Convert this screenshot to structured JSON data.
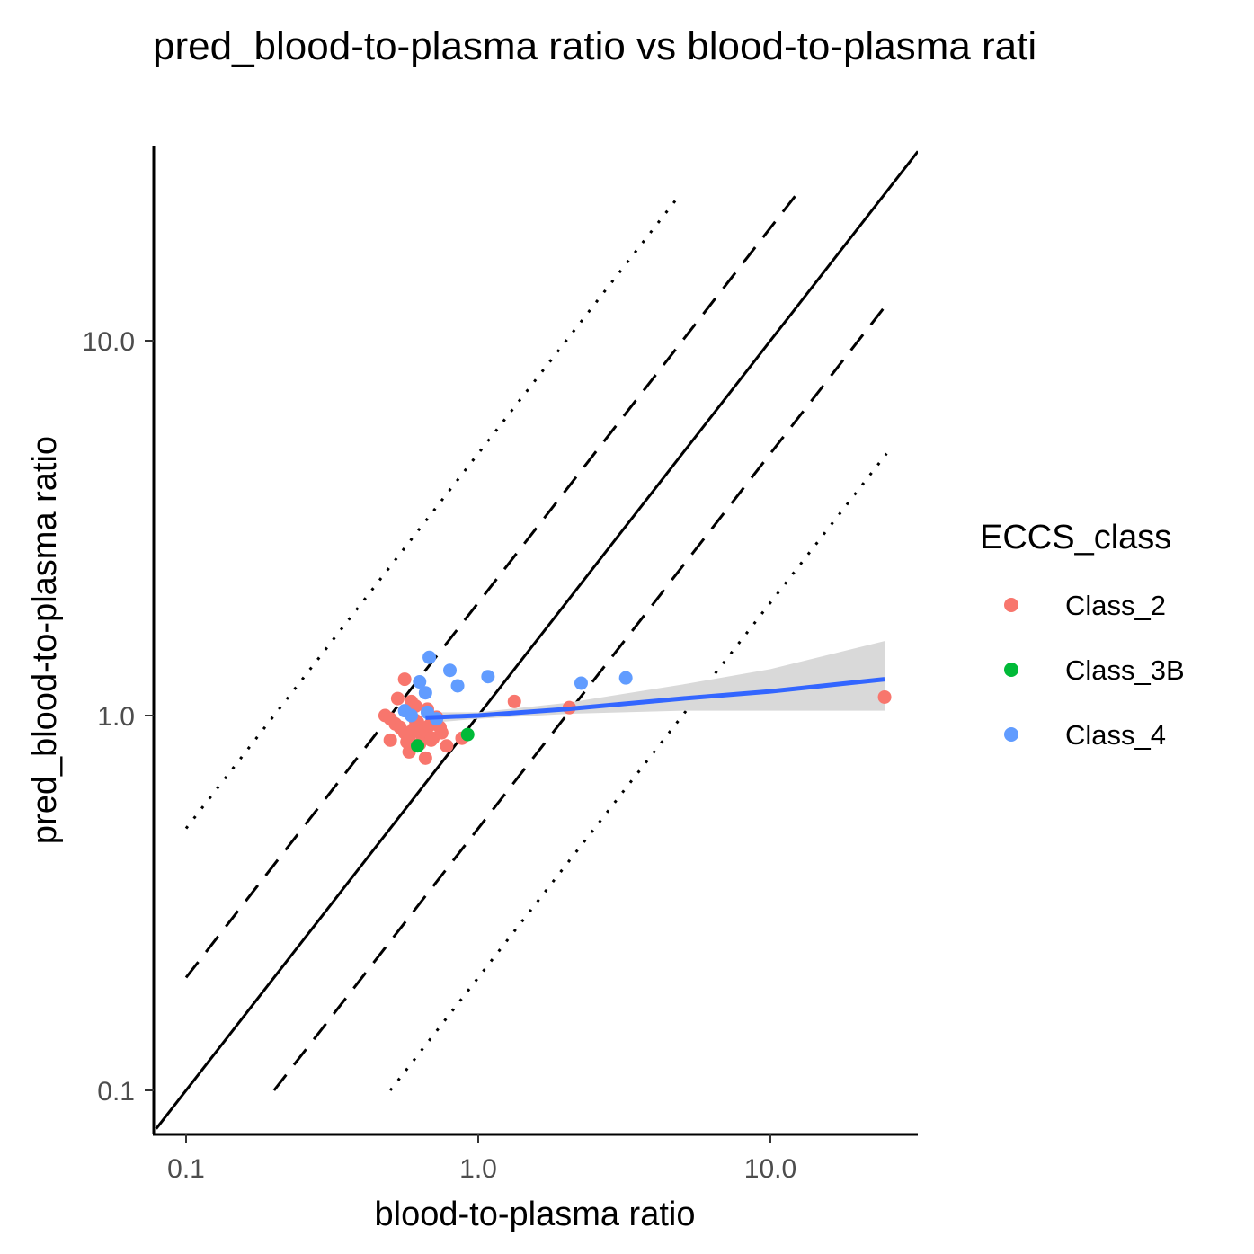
{
  "chart_data": {
    "type": "scatter",
    "title": "pred_blood-to-plasma ratio vs blood-to-plasma rati",
    "xlabel": "blood-to-plasma ratio",
    "ylabel": "pred_blood-to-plasma ratio",
    "x_scale": "log10",
    "y_scale": "log10",
    "xlim": [
      0.079,
      32
    ],
    "ylim": [
      0.079,
      32
    ],
    "x_ticks": [
      {
        "value": 0.1,
        "label": "0.1"
      },
      {
        "value": 1,
        "label": "1.0"
      },
      {
        "value": 10,
        "label": "10.0"
      }
    ],
    "y_ticks": [
      {
        "value": 0.1,
        "label": "0.1"
      },
      {
        "value": 1,
        "label": "1.0"
      },
      {
        "value": 10,
        "label": "10.0"
      }
    ],
    "grid": false,
    "legend": {
      "title": "ECCS_class",
      "position": "right",
      "entries": [
        {
          "label": "Class_2",
          "color": "#F8766D"
        },
        {
          "label": "Class_3B",
          "color": "#00BA38"
        },
        {
          "label": "Class_4",
          "color": "#619CFF"
        }
      ]
    },
    "reference_lines": [
      {
        "kind": "identity",
        "style": "solid",
        "factor": 1,
        "x_range": [
          0.079,
          32
        ]
      },
      {
        "kind": "2-fold",
        "style": "dashed",
        "factor": 2,
        "x_range": [
          0.1,
          12.5
        ]
      },
      {
        "kind": "2-fold",
        "style": "dashed",
        "factor": 0.5,
        "x_range": [
          0.2,
          25
        ]
      },
      {
        "kind": "5-fold",
        "style": "dotted",
        "factor": 5,
        "x_range": [
          0.1,
          4.8
        ]
      },
      {
        "kind": "5-fold",
        "style": "dotted",
        "factor": 0.2,
        "x_range": [
          0.5,
          25
        ]
      }
    ],
    "regression": {
      "color": "#3366FF",
      "band_color": "#d9d9d9",
      "x": [
        0.66,
        1,
        2,
        5,
        10,
        24.6
      ],
      "y": [
        0.987,
        1.0,
        1.04,
        1.11,
        1.16,
        1.25
      ],
      "lower": [
        0.954,
        0.98,
        1.01,
        1.03,
        1.03,
        1.03
      ],
      "upper": [
        1.02,
        1.02,
        1.08,
        1.21,
        1.33,
        1.58
      ]
    },
    "series": [
      {
        "name": "Class_2",
        "color": "#F8766D",
        "points": [
          [
            0.56,
            1.25
          ],
          [
            0.53,
            1.11
          ],
          [
            0.59,
            1.09
          ],
          [
            0.61,
            1.06
          ],
          [
            0.67,
            1.04
          ],
          [
            0.48,
            1.0
          ],
          [
            0.5,
            0.98
          ],
          [
            0.52,
            0.95
          ],
          [
            0.54,
            0.93
          ],
          [
            0.56,
            0.9
          ],
          [
            0.58,
            0.88
          ],
          [
            0.6,
            0.92
          ],
          [
            0.62,
            0.96
          ],
          [
            0.64,
            0.89
          ],
          [
            0.66,
            0.91
          ],
          [
            0.68,
            0.94
          ],
          [
            0.7,
            0.87
          ],
          [
            0.72,
            0.99
          ],
          [
            0.74,
            0.93
          ],
          [
            0.5,
            0.86
          ],
          [
            0.57,
            0.85
          ],
          [
            0.63,
            0.84
          ],
          [
            0.69,
            0.86
          ],
          [
            0.78,
            0.83
          ],
          [
            0.58,
            0.8
          ],
          [
            0.66,
            0.77
          ],
          [
            0.88,
            0.87
          ],
          [
            0.61,
            0.97
          ],
          [
            0.75,
            0.9
          ],
          [
            1.33,
            1.09
          ],
          [
            2.05,
            1.05
          ],
          [
            24.6,
            1.12
          ]
        ]
      },
      {
        "name": "Class_3B",
        "color": "#00BA38",
        "points": [
          [
            0.62,
            0.83
          ],
          [
            0.92,
            0.89
          ]
        ]
      },
      {
        "name": "Class_4",
        "color": "#619CFF",
        "points": [
          [
            0.68,
            1.43
          ],
          [
            0.8,
            1.32
          ],
          [
            0.85,
            1.2
          ],
          [
            1.08,
            1.27
          ],
          [
            0.63,
            1.23
          ],
          [
            0.66,
            1.15
          ],
          [
            0.56,
            1.03
          ],
          [
            0.59,
            1.0
          ],
          [
            0.67,
            1.02
          ],
          [
            0.72,
            0.98
          ],
          [
            2.25,
            1.22
          ],
          [
            3.2,
            1.26
          ]
        ]
      }
    ]
  }
}
